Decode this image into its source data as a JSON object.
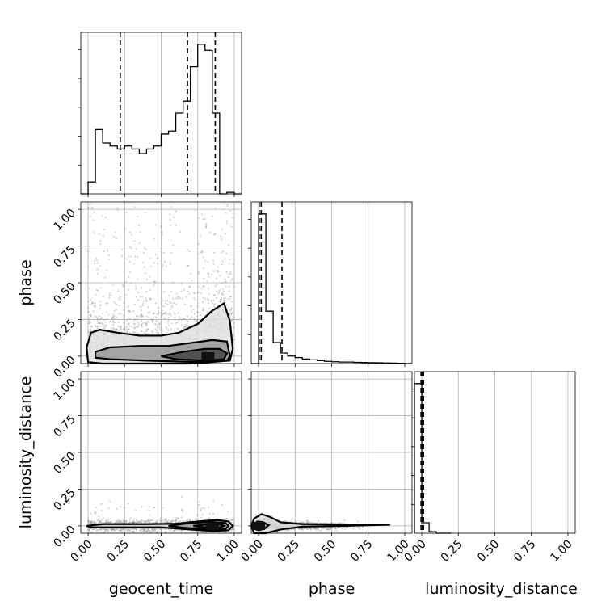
{
  "chart_data": {
    "type": "corner",
    "parameters": [
      "geocent_time",
      "phase",
      "luminosity_distance"
    ],
    "axis_labels": {
      "geocent_time": "geocent_time",
      "phase": "phase",
      "luminosity_distance": "luminosity_distance"
    },
    "tick_values": [
      0.0,
      0.25,
      0.5,
      0.75,
      1.0
    ],
    "tick_labels": [
      "0.00",
      "0.25",
      "0.50",
      "0.75",
      "1.00"
    ],
    "range": [
      -0.05,
      1.05
    ],
    "grid": true,
    "marginals": {
      "geocent_time": {
        "bin_width": 0.05,
        "bin_starts": [
          -0.05,
          0.0,
          0.05,
          0.1,
          0.15,
          0.2,
          0.25,
          0.3,
          0.35,
          0.4,
          0.45,
          0.5,
          0.55,
          0.6,
          0.65,
          0.7,
          0.75,
          0.8,
          0.85,
          0.9,
          0.95,
          1.0
        ],
        "values": [
          0.0,
          0.08,
          0.43,
          0.34,
          0.32,
          0.3,
          0.32,
          0.3,
          0.27,
          0.3,
          0.32,
          0.4,
          0.42,
          0.54,
          0.62,
          0.85,
          1.0,
          0.96,
          0.54,
          0.0,
          0.01,
          0.0
        ],
        "quantiles": [
          0.22,
          0.68,
          0.87
        ]
      },
      "phase": {
        "bin_width": 0.05,
        "bin_starts": [
          -0.05,
          0.0,
          0.05,
          0.1,
          0.15,
          0.2,
          0.25,
          0.3,
          0.35,
          0.4,
          0.45,
          0.5,
          0.55,
          0.6,
          0.65,
          0.7,
          0.75,
          0.8,
          0.85,
          0.9,
          0.95,
          1.0
        ],
        "values": [
          0.0,
          1.0,
          0.35,
          0.14,
          0.07,
          0.05,
          0.04,
          0.03,
          0.025,
          0.02,
          0.015,
          0.012,
          0.01,
          0.01,
          0.008,
          0.007,
          0.006,
          0.005,
          0.004,
          0.003,
          0.002,
          0.0
        ],
        "quantiles": [
          0.004,
          0.018,
          0.16
        ]
      },
      "luminosity_distance": {
        "bin_width": 0.05,
        "bin_starts": [
          -0.05,
          0.0,
          0.05,
          0.1,
          0.15
        ],
        "values": [
          1.0,
          0.07,
          0.01,
          0.0,
          0.0
        ],
        "quantiles": [
          -0.005,
          0.003,
          0.012
        ]
      }
    },
    "joint": [
      {
        "x": "geocent_time",
        "y": "phase",
        "peak": [
          0.82,
          0.0
        ],
        "levels": [
          [
            [
              -0.01,
              0.06
            ],
            [
              0.02,
              0.16
            ],
            [
              0.08,
              0.18
            ],
            [
              0.2,
              0.16
            ],
            [
              0.35,
              0.14
            ],
            [
              0.5,
              0.14
            ],
            [
              0.62,
              0.16
            ],
            [
              0.75,
              0.22
            ],
            [
              0.85,
              0.31
            ],
            [
              0.93,
              0.36
            ],
            [
              0.97,
              0.24
            ],
            [
              0.99,
              0.05
            ],
            [
              0.97,
              -0.03
            ],
            [
              0.7,
              -0.05
            ],
            [
              0.4,
              -0.05
            ],
            [
              0.1,
              -0.05
            ],
            [
              0.0,
              -0.04
            ]
          ],
          [
            [
              0.05,
              0.03
            ],
            [
              0.15,
              0.06
            ],
            [
              0.35,
              0.07
            ],
            [
              0.55,
              0.07
            ],
            [
              0.7,
              0.09
            ],
            [
              0.85,
              0.11
            ],
            [
              0.95,
              0.1
            ],
            [
              0.97,
              0.0
            ],
            [
              0.95,
              -0.03
            ],
            [
              0.75,
              -0.04
            ],
            [
              0.4,
              -0.03
            ],
            [
              0.15,
              -0.02
            ],
            [
              0.05,
              -0.01
            ]
          ],
          [
            [
              0.5,
              0.0
            ],
            [
              0.65,
              0.03
            ],
            [
              0.8,
              0.05
            ],
            [
              0.9,
              0.05
            ],
            [
              0.95,
              0.02
            ],
            [
              0.93,
              -0.02
            ],
            [
              0.8,
              -0.03
            ],
            [
              0.6,
              -0.02
            ]
          ]
        ]
      },
      {
        "x": "geocent_time",
        "y": "luminosity_distance",
        "peak": [
          0.85,
          0.0
        ],
        "levels": [
          [
            [
              -0.01,
              0.0
            ],
            [
              0.1,
              0.012
            ],
            [
              0.4,
              0.012
            ],
            [
              0.6,
              0.015
            ],
            [
              0.75,
              0.03
            ],
            [
              0.88,
              0.04
            ],
            [
              0.96,
              0.03
            ],
            [
              0.99,
              0.0
            ],
            [
              0.96,
              -0.03
            ],
            [
              0.85,
              -0.035
            ],
            [
              0.7,
              -0.025
            ],
            [
              0.5,
              -0.01
            ],
            [
              0.2,
              -0.01
            ],
            [
              0.02,
              -0.01
            ]
          ],
          [
            [
              0.55,
              0.0
            ],
            [
              0.7,
              0.02
            ],
            [
              0.85,
              0.027
            ],
            [
              0.94,
              0.02
            ],
            [
              0.96,
              0.0
            ],
            [
              0.94,
              -0.02
            ],
            [
              0.82,
              -0.025
            ],
            [
              0.65,
              -0.012
            ]
          ],
          [
            [
              0.72,
              0.0
            ],
            [
              0.82,
              0.012
            ],
            [
              0.9,
              0.012
            ],
            [
              0.93,
              0.0
            ],
            [
              0.9,
              -0.012
            ],
            [
              0.8,
              -0.012
            ]
          ]
        ]
      },
      {
        "x": "phase",
        "y": "luminosity_distance",
        "peak": [
          0.0,
          0.0
        ],
        "levels": [
          [
            [
              -0.05,
              0.0
            ],
            [
              -0.03,
              0.05
            ],
            [
              0.02,
              0.08
            ],
            [
              0.08,
              0.06
            ],
            [
              0.15,
              0.025
            ],
            [
              0.3,
              0.012
            ],
            [
              0.6,
              0.01
            ],
            [
              0.9,
              0.008
            ],
            [
              0.6,
              0.0
            ],
            [
              0.3,
              -0.005
            ],
            [
              0.15,
              -0.025
            ],
            [
              0.05,
              -0.05
            ],
            [
              -0.03,
              -0.05
            ]
          ],
          [
            [
              -0.03,
              0.0
            ],
            [
              -0.01,
              0.03
            ],
            [
              0.03,
              0.025
            ],
            [
              0.07,
              0.005
            ],
            [
              0.04,
              -0.02
            ],
            [
              0.0,
              -0.03
            ],
            [
              -0.03,
              -0.02
            ]
          ],
          [
            [
              -0.015,
              0.0
            ],
            [
              0.0,
              0.015
            ],
            [
              0.02,
              0.01
            ],
            [
              0.025,
              -0.005
            ],
            [
              0.005,
              -0.015
            ],
            [
              -0.015,
              -0.01
            ]
          ]
        ]
      }
    ]
  }
}
